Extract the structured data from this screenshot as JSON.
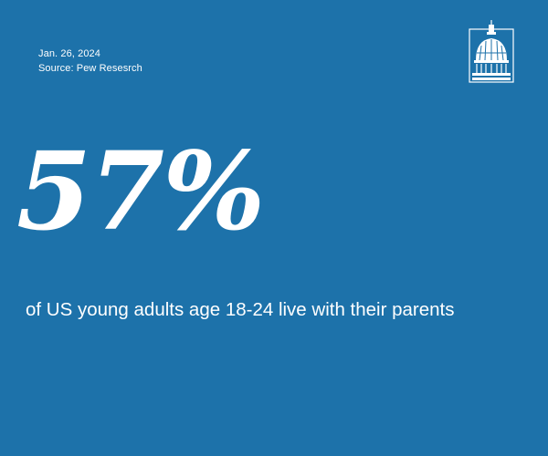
{
  "header": {
    "date": "Jan. 26, 2024",
    "source": "Source: Pew Resesrch"
  },
  "stat": {
    "value": "57%",
    "caption": "of US young adults age 18-24 live with their parents"
  },
  "logo": {
    "icon": "capitol-dome-icon"
  },
  "colors": {
    "background": "#1d72aa",
    "text": "#ffffff"
  }
}
